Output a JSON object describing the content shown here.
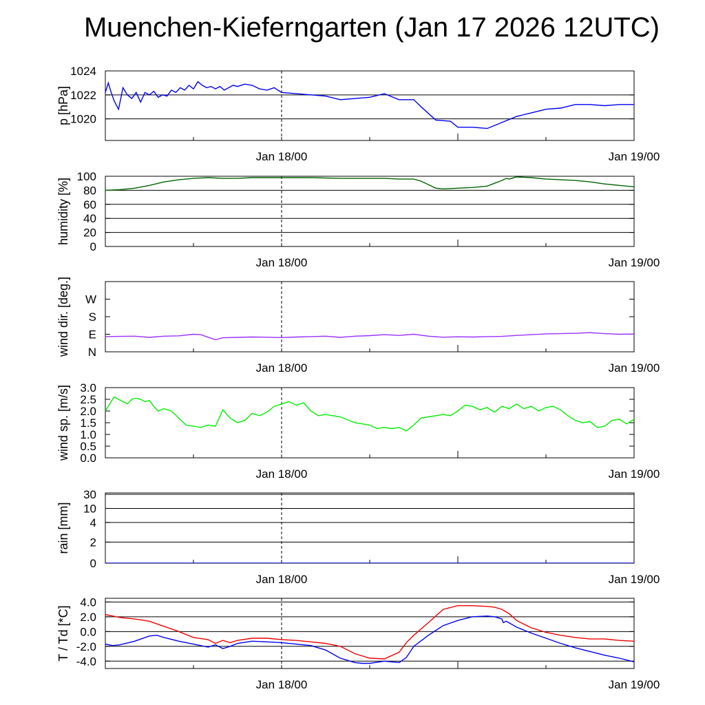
{
  "title": "Muenchen-Kieferngarten (Jan 17 2026 12UTC)",
  "x_ticks": [
    "Jan 18/00",
    "Jan 19/00"
  ],
  "chart_data": [
    {
      "type": "line",
      "ylabel": "p [hPa]",
      "ylim": [
        1018.2,
        1024
      ],
      "yticks": [
        1020,
        1022,
        1024
      ],
      "yticklabels": [
        "1020",
        "1022",
        "1024"
      ],
      "gridlines": [
        1020,
        1022,
        1024
      ],
      "x_range_hours": [
        0,
        36
      ],
      "series": [
        {
          "name": "pressure",
          "color": "#0000ee",
          "x": [
            0,
            0.2,
            0.4,
            0.6,
            0.9,
            1.2,
            1.5,
            1.8,
            2.1,
            2.4,
            2.7,
            3.0,
            3.3,
            3.6,
            3.9,
            4.2,
            4.5,
            4.8,
            5.1,
            5.4,
            5.7,
            6.0,
            6.3,
            6.6,
            6.9,
            7.2,
            7.5,
            7.8,
            8.1,
            8.4,
            8.7,
            9.0,
            9.5,
            10.0,
            10.5,
            11.0,
            11.5,
            12.0,
            13.0,
            14.0,
            15.0,
            16.0,
            17.0,
            18.0,
            19.0,
            20.0,
            21.0,
            21.5,
            22.5,
            23.5,
            24.0,
            25.0,
            26.0,
            27.0,
            28.0,
            29.0,
            30.0,
            31.0,
            32.0,
            33.0,
            34.0,
            35.0,
            36.0
          ],
          "values": [
            1022.2,
            1023.0,
            1022.2,
            1021.5,
            1020.8,
            1022.6,
            1022.0,
            1021.7,
            1022.2,
            1021.4,
            1022.2,
            1022.0,
            1022.3,
            1021.8,
            1022.0,
            1021.9,
            1022.4,
            1022.2,
            1022.6,
            1022.4,
            1022.8,
            1022.5,
            1023.1,
            1022.8,
            1022.6,
            1022.7,
            1022.5,
            1022.7,
            1022.4,
            1022.6,
            1022.8,
            1022.7,
            1022.9,
            1022.8,
            1022.5,
            1022.4,
            1022.6,
            1022.2,
            1022.1,
            1022.0,
            1021.9,
            1021.6,
            1021.7,
            1021.8,
            1022.1,
            1021.6,
            1021.6,
            1021.0,
            1019.9,
            1019.8,
            1019.3,
            1019.3,
            1019.2,
            1019.7,
            1020.2,
            1020.5,
            1020.8,
            1020.9,
            1021.2,
            1021.2,
            1021.1,
            1021.2,
            1021.2
          ]
        }
      ]
    },
    {
      "type": "line",
      "ylabel": "humidity [%]",
      "ylim": [
        0,
        100
      ],
      "yticks": [
        0,
        20,
        40,
        60,
        80,
        100
      ],
      "yticklabels": [
        "0",
        "20",
        "40",
        "60",
        "80",
        "100"
      ],
      "gridlines": [
        20,
        40,
        60,
        80,
        100
      ],
      "x_range_hours": [
        0,
        36
      ],
      "series": [
        {
          "name": "humidity",
          "color": "#006400",
          "x": [
            0,
            1,
            2,
            3,
            4,
            5,
            6,
            7,
            8,
            9,
            10,
            11,
            12,
            14,
            16,
            18,
            19,
            20,
            21,
            21.5,
            22,
            22.5,
            23,
            24,
            25,
            26,
            26.5,
            27,
            27.3,
            27.5,
            28,
            29,
            30,
            31,
            32,
            33,
            34,
            35,
            36
          ],
          "values": [
            80,
            81,
            83,
            87,
            92,
            95,
            97,
            98,
            97,
            97,
            98,
            98,
            98,
            98,
            97,
            97,
            97,
            96,
            96,
            93,
            88,
            83,
            82,
            83,
            84,
            86,
            90,
            94,
            97,
            96,
            99,
            98,
            96,
            95,
            94,
            92,
            89,
            87,
            85
          ]
        }
      ]
    },
    {
      "type": "line",
      "ylabel": "wind dir. [deg.]",
      "ylim": [
        0,
        360
      ],
      "yticks": [
        0,
        90,
        180,
        270
      ],
      "yticklabels": [
        "N",
        "E",
        "S",
        "W"
      ],
      "gridlines": [],
      "x_range_hours": [
        0,
        36
      ],
      "series": [
        {
          "name": "wind direction",
          "color": "#9b30ff",
          "x": [
            0,
            1,
            2,
            3,
            4,
            5,
            6,
            6.5,
            7,
            7.5,
            8,
            9,
            10,
            11,
            12,
            13,
            14,
            15,
            16,
            17,
            18,
            19,
            20,
            21,
            22,
            23,
            24,
            25,
            26,
            27,
            28,
            29,
            30,
            31,
            32,
            33,
            34,
            35,
            36
          ],
          "values": [
            78,
            79,
            80,
            74,
            80,
            82,
            90,
            88,
            75,
            62,
            72,
            74,
            76,
            75,
            73,
            76,
            78,
            80,
            74,
            80,
            83,
            88,
            84,
            90,
            80,
            75,
            77,
            76,
            78,
            79,
            84,
            88,
            92,
            93,
            95,
            98,
            93,
            90,
            91
          ]
        }
      ]
    },
    {
      "type": "line",
      "ylabel": "wind sp. [m/s]",
      "ylim": [
        0,
        3
      ],
      "yticks": [
        0.0,
        0.5,
        1.0,
        1.5,
        2.0,
        2.5,
        3.0
      ],
      "yticklabels": [
        "0.0",
        "0.5",
        "1.0",
        "1.5",
        "2.0",
        "2.5",
        "3.0"
      ],
      "gridlines": [],
      "x_range_hours": [
        0,
        36
      ],
      "series": [
        {
          "name": "wind speed",
          "color": "#00ee00",
          "x": [
            0,
            0.3,
            0.6,
            0.9,
            1.2,
            1.5,
            1.8,
            2.1,
            2.4,
            2.7,
            3.0,
            3.3,
            3.6,
            4.0,
            4.5,
            5.0,
            5.5,
            6.0,
            6.5,
            7.0,
            7.5,
            8.0,
            8.5,
            9.0,
            9.5,
            10.0,
            10.5,
            11.0,
            11.5,
            12.0,
            12.5,
            13.0,
            13.5,
            14.0,
            14.5,
            15.0,
            16.0,
            17.0,
            18.0,
            18.5,
            19.0,
            19.5,
            20.0,
            20.5,
            21.0,
            21.5,
            22.0,
            23.0,
            23.5,
            24.0,
            24.5,
            25.0,
            25.5,
            26.0,
            26.5,
            27.0,
            27.5,
            28.0,
            28.5,
            29.0,
            29.5,
            30.0,
            30.5,
            31.0,
            31.5,
            32.0,
            32.5,
            33.0,
            33.5,
            34.0,
            34.5,
            35.0,
            35.5,
            36.0
          ],
          "values": [
            2.0,
            2.3,
            2.6,
            2.5,
            2.4,
            2.3,
            2.5,
            2.55,
            2.5,
            2.4,
            2.45,
            2.2,
            2.0,
            2.1,
            2.0,
            1.7,
            1.4,
            1.35,
            1.3,
            1.4,
            1.35,
            2.05,
            1.7,
            1.5,
            1.6,
            1.9,
            1.8,
            1.95,
            2.2,
            2.3,
            2.4,
            2.25,
            2.35,
            2.0,
            1.8,
            1.85,
            1.75,
            1.5,
            1.4,
            1.25,
            1.3,
            1.25,
            1.3,
            1.15,
            1.4,
            1.7,
            1.75,
            1.85,
            1.8,
            2.0,
            2.25,
            2.2,
            2.05,
            2.15,
            1.95,
            2.2,
            2.1,
            2.3,
            2.1,
            2.2,
            2.0,
            2.15,
            2.2,
            2.05,
            1.8,
            1.6,
            1.5,
            1.55,
            1.3,
            1.35,
            1.6,
            1.65,
            1.45,
            1.65
          ]
        }
      ]
    },
    {
      "type": "line",
      "ylabel": "rain [mm]",
      "ylim": [
        0,
        30
      ],
      "yticks": [
        0,
        2,
        4,
        10,
        30
      ],
      "yticklabels": [
        "0",
        "2",
        "4",
        "10",
        "30"
      ],
      "gridlines": [
        2,
        4,
        10,
        30
      ],
      "scale": "custom",
      "x_range_hours": [
        0,
        36
      ],
      "series": [
        {
          "name": "rain",
          "color": "#0000ee",
          "x": [
            0,
            36
          ],
          "values": [
            0,
            0
          ]
        }
      ]
    },
    {
      "type": "line",
      "ylabel": "T / Td [*C]",
      "ylim": [
        -5,
        4.5
      ],
      "yticks": [
        -4.0,
        -2.0,
        0.0,
        2.0,
        4.0
      ],
      "yticklabels": [
        "-4.0",
        "-2.0",
        "0.0",
        "2.0",
        "4.0"
      ],
      "gridlines": [
        -4,
        -2,
        0,
        2,
        4
      ],
      "x_range_hours": [
        0,
        36
      ],
      "series": [
        {
          "name": "T",
          "color": "#ee0000",
          "x": [
            0,
            1,
            2,
            3,
            4,
            5,
            6,
            7,
            7.5,
            8,
            8.5,
            9,
            10,
            11,
            12,
            13,
            14,
            15,
            16,
            17,
            18,
            19,
            20,
            20.5,
            21,
            22,
            23,
            24,
            25,
            26,
            26.5,
            27,
            27.5,
            28,
            29,
            30,
            31,
            32,
            33,
            34,
            35,
            36
          ],
          "values": [
            2.3,
            1.9,
            1.7,
            1.4,
            0.7,
            0.0,
            -0.8,
            -1.1,
            -1.6,
            -1.2,
            -1.5,
            -1.2,
            -0.9,
            -0.9,
            -1.1,
            -1.2,
            -1.4,
            -1.6,
            -2.0,
            -3.0,
            -3.6,
            -3.7,
            -2.8,
            -1.5,
            -0.5,
            1.2,
            3.0,
            3.5,
            3.5,
            3.4,
            3.3,
            3.0,
            2.4,
            1.5,
            0.5,
            -0.1,
            -0.5,
            -0.8,
            -1.0,
            -1.0,
            -1.2,
            -1.3
          ]
        },
        {
          "name": "Td",
          "color": "#0000ee",
          "x": [
            0,
            0.5,
            1,
            2,
            3,
            3.5,
            4,
            5,
            6,
            7,
            7.5,
            8,
            8.5,
            9,
            10,
            11,
            12,
            13,
            14,
            15,
            16,
            17,
            17.5,
            18,
            19,
            20,
            20.5,
            21,
            22,
            23,
            24,
            25,
            26,
            26.5,
            27,
            27.1,
            27.3,
            28,
            29,
            30,
            31,
            32,
            33,
            34,
            35,
            36
          ],
          "values": [
            -1.7,
            -1.9,
            -1.8,
            -1.3,
            -0.6,
            -0.5,
            -0.8,
            -1.3,
            -1.7,
            -2.1,
            -1.8,
            -2.3,
            -2.0,
            -1.6,
            -1.3,
            -1.4,
            -1.5,
            -1.7,
            -1.9,
            -2.5,
            -3.6,
            -4.2,
            -4.3,
            -4.3,
            -4.0,
            -4.2,
            -3.5,
            -2.0,
            -0.5,
            0.8,
            1.5,
            2.0,
            2.1,
            2.0,
            1.7,
            1.2,
            1.4,
            0.6,
            -0.2,
            -0.9,
            -1.6,
            -2.2,
            -2.7,
            -3.2,
            -3.6,
            -4.1
          ]
        }
      ]
    }
  ]
}
